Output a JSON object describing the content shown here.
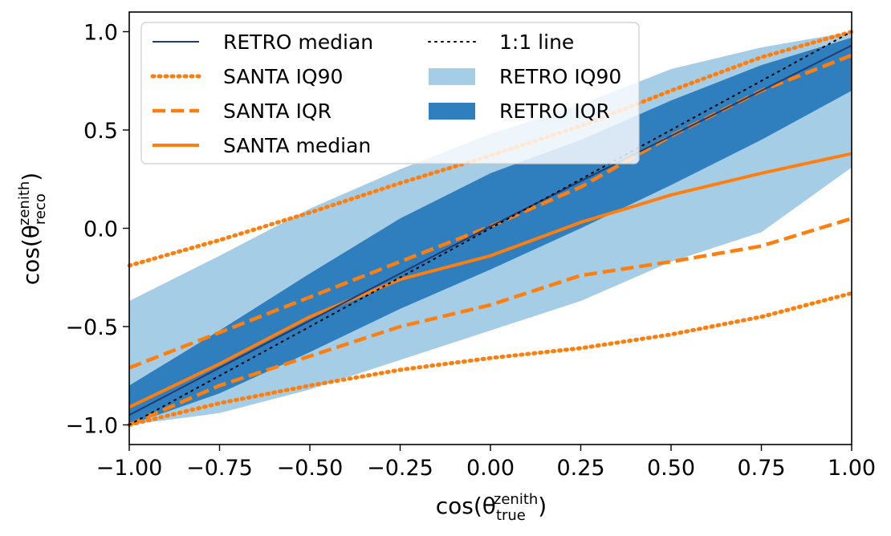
{
  "chart_data": {
    "type": "line",
    "xlabel": {
      "base": "cos(θ",
      "sub": "true",
      "sup": "zenith",
      "close": ")"
    },
    "ylabel": {
      "base": "cos(θ",
      "sub": "reco",
      "sup": "zenith",
      "close": ")"
    },
    "xlim": [
      -1.0,
      1.0
    ],
    "ylim": [
      -1.1,
      1.1
    ],
    "xticks": [
      "−1.00",
      "−0.75",
      "−0.50",
      "−0.25",
      "0.00",
      "0.25",
      "0.50",
      "0.75",
      "1.00"
    ],
    "xtick_values": [
      -1.0,
      -0.75,
      -0.5,
      -0.25,
      0.0,
      0.25,
      0.5,
      0.75,
      1.0
    ],
    "yticks": [
      "−1.0",
      "−0.5",
      "0.0",
      "0.5",
      "1.0"
    ],
    "ytick_values": [
      -1.0,
      -0.5,
      0.0,
      0.5,
      1.0
    ],
    "grid": false,
    "legend_position": "top-left",
    "x": [
      -1.0,
      -0.75,
      -0.5,
      -0.25,
      0.0,
      0.25,
      0.5,
      0.75,
      1.0
    ],
    "series": [
      {
        "name": "RETRO median",
        "style": "solid",
        "color": "#1f3b73",
        "values": [
          -0.95,
          -0.71,
          -0.47,
          -0.23,
          0.01,
          0.24,
          0.47,
          0.7,
          0.93
        ]
      },
      {
        "name": "SANTA IQ90",
        "style": "dotted",
        "color": "#ff7f0e",
        "upper": [
          -0.19,
          -0.06,
          0.08,
          0.23,
          0.37,
          0.52,
          0.7,
          0.87,
          1.0
        ],
        "lower": [
          -1.0,
          -0.89,
          -0.8,
          -0.72,
          -0.66,
          -0.61,
          -0.54,
          -0.45,
          -0.33
        ]
      },
      {
        "name": "SANTA IQR",
        "style": "dashed",
        "color": "#ff7f0e",
        "upper": [
          -0.71,
          -0.53,
          -0.35,
          -0.17,
          0.01,
          0.21,
          0.47,
          0.7,
          0.88
        ],
        "lower": [
          -1.0,
          -0.8,
          -0.65,
          -0.5,
          -0.39,
          -0.24,
          -0.17,
          -0.09,
          0.05
        ]
      },
      {
        "name": "SANTA median",
        "style": "solid",
        "color": "#ff7f0e",
        "values": [
          -0.91,
          -0.69,
          -0.45,
          -0.26,
          -0.14,
          0.03,
          0.17,
          0.28,
          0.38
        ]
      },
      {
        "name": "1:1 line",
        "style": "dotted",
        "color": "#000000",
        "values": [
          -1.0,
          -0.75,
          -0.5,
          -0.25,
          0.0,
          0.25,
          0.5,
          0.75,
          1.0
        ]
      },
      {
        "name": "RETRO IQ90",
        "style": "band",
        "color": "#a6cde6",
        "upper": [
          -0.37,
          -0.14,
          0.1,
          0.3,
          0.48,
          0.63,
          0.81,
          0.92,
          1.0
        ],
        "lower": [
          -1.0,
          -0.94,
          -0.82,
          -0.67,
          -0.52,
          -0.37,
          -0.17,
          -0.02,
          0.31
        ]
      },
      {
        "name": "RETRO IQR",
        "style": "band",
        "color": "#2f7fbf",
        "upper": [
          -0.8,
          -0.52,
          -0.23,
          0.05,
          0.28,
          0.45,
          0.65,
          0.83,
          0.97
        ],
        "lower": [
          -1.0,
          -0.84,
          -0.63,
          -0.41,
          -0.21,
          0.0,
          0.22,
          0.45,
          0.7
        ]
      }
    ]
  }
}
